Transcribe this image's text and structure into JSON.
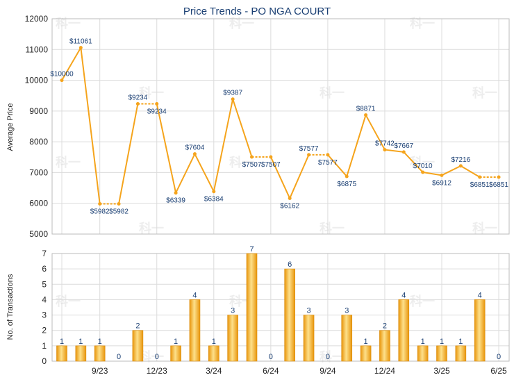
{
  "chart_data": [
    {
      "type": "line",
      "title": "Price Trends - PO NGA COURT",
      "ylabel": "Average Price",
      "ylim": [
        5000,
        12000
      ],
      "yticks": [
        "5000",
        "6000",
        "7000",
        "8000",
        "9000",
        "10000",
        "11000",
        "12000"
      ],
      "grid": true,
      "line_color": "#f5a41c",
      "series": [
        {
          "values": [
            10000,
            11061,
            5982,
            5982,
            9234,
            9234,
            6339,
            7604,
            6384,
            9387,
            7507,
            7507,
            6162,
            7577,
            7577,
            6875,
            8871,
            7742,
            7667,
            7010,
            6912,
            7216,
            6851,
            6851
          ],
          "labels": [
            "$10000",
            "$11061",
            "$5982",
            "$5982",
            "$9234",
            "$9234",
            "$6339",
            "$7604",
            "$6384",
            "$9387",
            "$7507",
            "$7507",
            "$6162",
            "$7577",
            "$7577",
            "$6875",
            "$8871",
            "$7742",
            "$7667",
            "$7010",
            "$6912",
            "$7216",
            "$6851",
            "$6851"
          ],
          "carried_forward": [
            false,
            false,
            false,
            true,
            false,
            true,
            false,
            false,
            false,
            false,
            false,
            true,
            false,
            false,
            true,
            false,
            false,
            false,
            false,
            false,
            false,
            false,
            false,
            true
          ]
        }
      ]
    },
    {
      "type": "bar",
      "ylabel": "No. of Transactions",
      "ylim": [
        0,
        7
      ],
      "yticks": [
        "0",
        "1",
        "2",
        "3",
        "4",
        "5",
        "6",
        "7"
      ],
      "xticks": [
        {
          "index": 2,
          "label": "9/23"
        },
        {
          "index": 5,
          "label": "12/23"
        },
        {
          "index": 8,
          "label": "3/24"
        },
        {
          "index": 11,
          "label": "6/24"
        },
        {
          "index": 14,
          "label": "9/24"
        },
        {
          "index": 17,
          "label": "12/24"
        },
        {
          "index": 20,
          "label": "3/25"
        },
        {
          "index": 23,
          "label": "6/25"
        }
      ],
      "grid": true,
      "bar_color": "#f5b22a",
      "values": [
        1,
        1,
        1,
        0,
        2,
        0,
        1,
        4,
        1,
        3,
        7,
        0,
        6,
        3,
        0,
        3,
        1,
        2,
        4,
        1,
        1,
        1,
        4,
        0
      ]
    }
  ],
  "watermark": "科一"
}
